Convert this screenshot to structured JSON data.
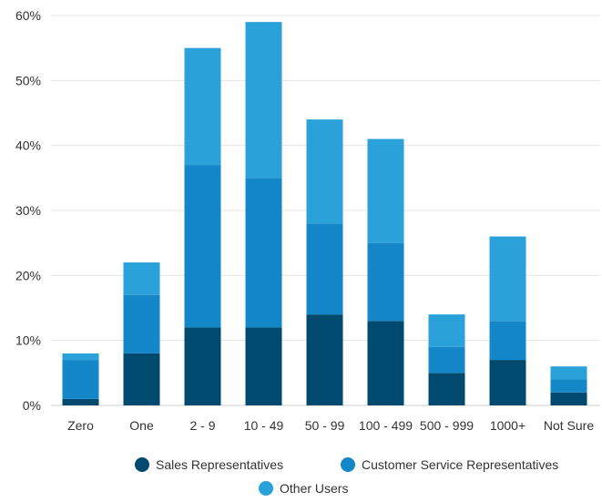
{
  "chart_data": {
    "type": "bar",
    "stacked": true,
    "categories": [
      "Zero",
      "One",
      "2 - 9",
      "10 - 49",
      "50 - 99",
      "100 - 499",
      "500 - 999",
      "1000+",
      "Not Sure"
    ],
    "series": [
      {
        "name": "Sales Representatives",
        "color": "#004a70",
        "values": [
          1,
          8,
          12,
          12,
          14,
          13,
          5,
          7,
          2
        ]
      },
      {
        "name": "Customer Service Representatives",
        "color": "#1387c7",
        "values": [
          6,
          9,
          25,
          23,
          14,
          12,
          4,
          6,
          2
        ]
      },
      {
        "name": "Other Users",
        "color": "#2aa1d9",
        "values": [
          1,
          5,
          18,
          24,
          16,
          16,
          5,
          13,
          2
        ]
      }
    ],
    "ylim": [
      0,
      60
    ],
    "yticks": [
      "0%",
      "10%",
      "20%",
      "30%",
      "40%",
      "50%",
      "60%"
    ],
    "grid": true,
    "legend_position": "bottom"
  }
}
